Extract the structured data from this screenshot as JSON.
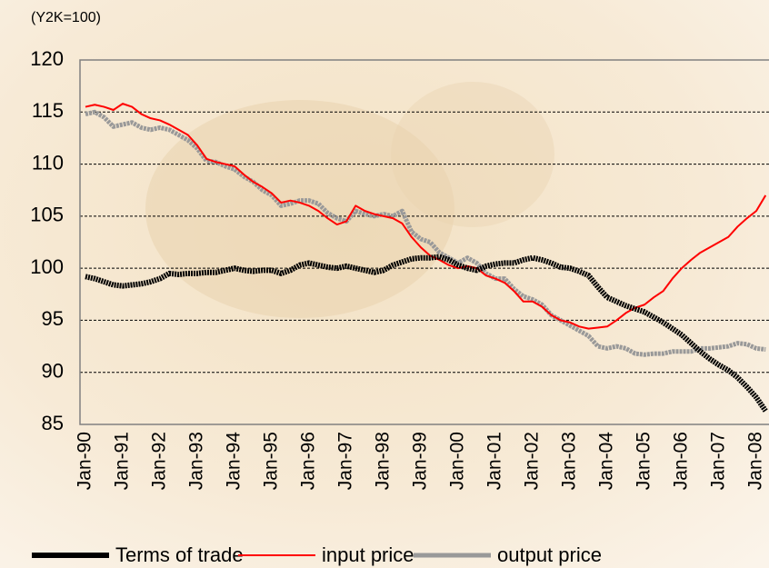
{
  "chart_data": {
    "type": "line",
    "y_axis_label": "(Y2K=100)",
    "categories": [
      "Jan-90",
      null,
      null,
      null,
      "Jan-91",
      null,
      null,
      null,
      "Jan-92",
      null,
      null,
      null,
      "Jan-93",
      null,
      null,
      null,
      "Jan-94",
      null,
      null,
      null,
      "Jan-95",
      null,
      null,
      null,
      "Jan-96",
      null,
      null,
      null,
      "Jan-97",
      null,
      null,
      null,
      "Jan-98",
      null,
      null,
      null,
      "Jan-99",
      null,
      null,
      null,
      "Jan-00",
      null,
      null,
      null,
      "Jan-01",
      null,
      null,
      null,
      "Jan-02",
      null,
      null,
      null,
      "Jan-03",
      null,
      null,
      null,
      "Jan-04",
      null,
      null,
      null,
      "Jan-05",
      null,
      null,
      null,
      "Jan-06",
      null,
      null,
      null,
      "Jan-07",
      null,
      null,
      null,
      "Jan-08",
      null
    ],
    "series": [
      {
        "name": "Terms of trade",
        "color": "#000000",
        "values": [
          99.2,
          99,
          98.7,
          98.4,
          98.3,
          98.4,
          98.5,
          98.7,
          99,
          99.5,
          99.4,
          99.5,
          99.5,
          99.6,
          99.6,
          99.8,
          100,
          99.8,
          99.7,
          99.8,
          99.8,
          99.5,
          99.8,
          100.3,
          100.5,
          100.3,
          100.1,
          100,
          100.2,
          100,
          99.8,
          99.6,
          99.8,
          100.3,
          100.6,
          100.9,
          101,
          101,
          101.1,
          100.8,
          100.3,
          100,
          99.8,
          100.2,
          100.4,
          100.5,
          100.5,
          100.8,
          101,
          100.8,
          100.5,
          100.1,
          100,
          99.7,
          99.3,
          98.2,
          97.2,
          96.8,
          96.4,
          96.1,
          95.8,
          95.3,
          94.8,
          94.2,
          93.6,
          92.8,
          92,
          91.3,
          90.7,
          90.2,
          89.5,
          88.6,
          87.6,
          86.3
        ]
      },
      {
        "name": "input price",
        "color": "#ff0000",
        "values": [
          115.5,
          115.7,
          115.5,
          115.2,
          115.8,
          115.5,
          114.8,
          114.4,
          114.2,
          113.8,
          113.3,
          112.8,
          111.8,
          110.5,
          110.2,
          110,
          109.8,
          109,
          108.3,
          107.8,
          107.2,
          106.3,
          106.5,
          106.3,
          106,
          105.5,
          104.8,
          104.2,
          104.5,
          106,
          105.5,
          105.2,
          105,
          104.8,
          104.3,
          103,
          102,
          101.2,
          100.8,
          100.3,
          100,
          100.2,
          100,
          99.3,
          99,
          98.6,
          97.8,
          96.8,
          96.8,
          96.3,
          95.5,
          95,
          94.8,
          94.4,
          94.2,
          94.3,
          94.4,
          95,
          95.7,
          96.2,
          96.5,
          97.2,
          97.8,
          99,
          100,
          100.8,
          101.5,
          102,
          102.5,
          103,
          104,
          104.8,
          105.5,
          107
        ]
      },
      {
        "name": "output price",
        "color": "#999999",
        "values": [
          114.8,
          115,
          114.5,
          113.6,
          113.8,
          114,
          113.5,
          113.3,
          113.5,
          113.3,
          112.8,
          112.3,
          111.5,
          110.3,
          110.2,
          109.8,
          109.5,
          108.8,
          108.3,
          107.5,
          107,
          106,
          106.2,
          106.5,
          106.5,
          106.2,
          105.3,
          104.8,
          104.5,
          105.5,
          105.2,
          105,
          105.2,
          105,
          105.5,
          103.5,
          102.8,
          102.5,
          101.5,
          101,
          100.5,
          101,
          100.5,
          99.5,
          99,
          99,
          98,
          97.3,
          97,
          96.5,
          95.5,
          95,
          94.5,
          94,
          93.5,
          92.5,
          92.3,
          92.5,
          92.3,
          91.8,
          91.7,
          91.8,
          91.8,
          92,
          92,
          92,
          92.3,
          92.3,
          92.4,
          92.5,
          92.8,
          92.7,
          92.3,
          92.2
        ]
      }
    ],
    "ylim": [
      85,
      120
    ],
    "yticks": [
      85,
      90,
      95,
      100,
      105,
      110,
      115,
      120
    ],
    "grid": true
  }
}
